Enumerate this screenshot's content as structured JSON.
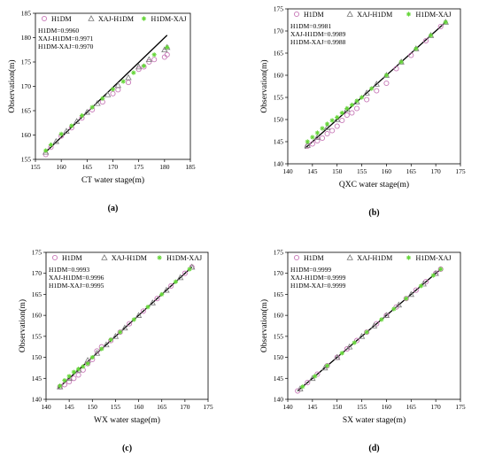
{
  "series_names": [
    "H1DM",
    "XAJ-H1DM",
    "H1DM-XAJ"
  ],
  "colors": {
    "h1dm": "#c87ab8",
    "xaj_h1dm": "#7a7a7a",
    "h1dm_xaj": "#66d63a",
    "fit_line": "#000000"
  },
  "chart_data": [
    {
      "type": "scatter",
      "panel_label": "(a)",
      "xlabel": "CT water stage(m)",
      "ylabel": "Observation(m)",
      "xlim": [
        155,
        185
      ],
      "ylim": [
        155,
        185
      ],
      "xticks": [
        155,
        160,
        165,
        170,
        175,
        180,
        185
      ],
      "yticks": [
        155,
        160,
        165,
        170,
        175,
        180,
        185
      ],
      "legend_position": "top",
      "annotations": [
        "H1DM=0.9960",
        "XAJ-H1DM=0.9971",
        "H1DM-XAJ=0.9970"
      ],
      "reference_line": {
        "x": [
          157,
          180.5
        ],
        "y": [
          156.5,
          180.5
        ]
      },
      "series": [
        {
          "name": "H1DM",
          "marker": "circle",
          "points": [
            [
              157,
              156
            ],
            [
              158,
              157.5
            ],
            [
              160,
              159.8
            ],
            [
              162,
              161.5
            ],
            [
              164,
              163.5
            ],
            [
              166,
              165.2
            ],
            [
              168,
              166.8
            ],
            [
              170,
              168.5
            ],
            [
              171,
              169.3
            ],
            [
              173,
              170.8
            ],
            [
              175,
              173.5
            ],
            [
              176,
              174
            ],
            [
              177,
              175
            ],
            [
              178,
              175.5
            ],
            [
              180,
              176
            ],
            [
              180.5,
              176.5
            ]
          ]
        },
        {
          "name": "XAJ-H1DM",
          "marker": "triangle",
          "points": [
            [
              157,
              156.5
            ],
            [
              159,
              158.7
            ],
            [
              161,
              160.8
            ],
            [
              163,
              162.8
            ],
            [
              165,
              164.7
            ],
            [
              167,
              166.5
            ],
            [
              169,
              168.3
            ],
            [
              171,
              170.2
            ],
            [
              173,
              171.8
            ],
            [
              175,
              174
            ],
            [
              177,
              175.5
            ],
            [
              180,
              177.5
            ],
            [
              180.5,
              178
            ]
          ]
        },
        {
          "name": "H1DM-XAJ",
          "marker": "star",
          "points": [
            [
              157,
              156.8
            ],
            [
              158,
              158
            ],
            [
              160,
              160.2
            ],
            [
              162,
              161.9
            ],
            [
              164,
              164
            ],
            [
              166,
              165.7
            ],
            [
              168,
              167.5
            ],
            [
              170,
              169.4
            ],
            [
              172,
              171
            ],
            [
              174,
              172.8
            ],
            [
              176,
              174.2
            ],
            [
              178,
              176.5
            ],
            [
              180.5,
              178
            ]
          ]
        }
      ]
    },
    {
      "type": "scatter",
      "panel_label": "(b)",
      "xlabel": "QXC water stage(m)",
      "ylabel": "Observation(m)",
      "xlim": [
        140,
        175
      ],
      "ylim": [
        140,
        175
      ],
      "xticks": [
        140,
        145,
        150,
        155,
        160,
        165,
        170,
        175
      ],
      "yticks": [
        140,
        145,
        150,
        155,
        160,
        165,
        170,
        175
      ],
      "legend_position": "top",
      "annotations": [
        "H1DM=0.9981",
        "XAJ-H1DM=0.9989",
        "H1DM-XAJ=0.9988"
      ],
      "reference_line": {
        "x": [
          143.5,
          172
        ],
        "y": [
          143.5,
          172
        ]
      },
      "series": [
        {
          "name": "H1DM",
          "marker": "circle",
          "points": [
            [
              144,
              144
            ],
            [
              145,
              144.5
            ],
            [
              146,
              145.2
            ],
            [
              147,
              145.8
            ],
            [
              148,
              146.8
            ],
            [
              149,
              147.5
            ],
            [
              150,
              148.5
            ],
            [
              151,
              149.8
            ],
            [
              152,
              151
            ],
            [
              153,
              151.5
            ],
            [
              154,
              152.5
            ],
            [
              156,
              154.5
            ],
            [
              158,
              156.5
            ],
            [
              160,
              158.2
            ],
            [
              162,
              161.5
            ],
            [
              165,
              164.5
            ],
            [
              168,
              167.8
            ],
            [
              171,
              171
            ]
          ]
        },
        {
          "name": "XAJ-H1DM",
          "marker": "triangle",
          "points": [
            [
              144,
              144.2
            ],
            [
              146,
              146
            ],
            [
              148,
              148.2
            ],
            [
              150,
              150
            ],
            [
              152,
              152.3
            ],
            [
              154,
              154
            ],
            [
              156,
              156
            ],
            [
              158,
              158
            ],
            [
              160,
              160
            ],
            [
              163,
              163
            ],
            [
              166,
              166
            ],
            [
              169,
              169
            ],
            [
              172,
              172
            ]
          ]
        },
        {
          "name": "H1DM-XAJ",
          "marker": "star",
          "points": [
            [
              144,
              145
            ],
            [
              145,
              146
            ],
            [
              146,
              147
            ],
            [
              147,
              148
            ],
            [
              148,
              149
            ],
            [
              149,
              149.8
            ],
            [
              150,
              150.5
            ],
            [
              151,
              151.5
            ],
            [
              152,
              152.5
            ],
            [
              153,
              153.3
            ],
            [
              154,
              154.2
            ],
            [
              155,
              155
            ],
            [
              157,
              157
            ],
            [
              160,
              160
            ],
            [
              163,
              163
            ],
            [
              166,
              166
            ],
            [
              169,
              169
            ],
            [
              172,
              172
            ]
          ]
        }
      ]
    },
    {
      "type": "scatter",
      "panel_label": "(c)",
      "xlabel": "WX water stage(m)",
      "ylabel": "Observation(m)",
      "xlim": [
        140,
        175
      ],
      "ylim": [
        140,
        175
      ],
      "xticks": [
        140,
        145,
        150,
        155,
        160,
        165,
        170,
        175
      ],
      "yticks": [
        140,
        145,
        150,
        155,
        160,
        165,
        170,
        175
      ],
      "legend_position": "top",
      "annotations": [
        "H1DM=0.9993",
        "XAJ-H1DM=0.9996",
        "H1DM-XAJ=0.9995"
      ],
      "reference_line": {
        "x": [
          142.5,
          171.5
        ],
        "y": [
          142.5,
          171.5
        ]
      },
      "series": [
        {
          "name": "H1DM",
          "marker": "circle",
          "points": [
            [
              143,
              143
            ],
            [
              144,
              143.5
            ],
            [
              145,
              144.2
            ],
            [
              146,
              145
            ],
            [
              147,
              145.8
            ],
            [
              148,
              147
            ],
            [
              149,
              148.5
            ],
            [
              150,
              149.5
            ],
            [
              151,
              151.5
            ],
            [
              152,
              152.5
            ],
            [
              154,
              154
            ],
            [
              156,
              156
            ],
            [
              158,
              158
            ],
            [
              161,
              161
            ],
            [
              164,
              164
            ],
            [
              167,
              167
            ],
            [
              170,
              170
            ],
            [
              171.5,
              171.5
            ]
          ]
        },
        {
          "name": "XAJ-H1DM",
          "marker": "triangle",
          "points": [
            [
              143,
              143
            ],
            [
              145,
              145
            ],
            [
              147,
              147
            ],
            [
              149,
              149.3
            ],
            [
              151,
              151
            ],
            [
              153,
              153
            ],
            [
              155,
              155
            ],
            [
              157,
              157
            ],
            [
              160,
              160
            ],
            [
              163,
              163
            ],
            [
              166,
              166
            ],
            [
              169,
              169
            ],
            [
              171.5,
              171.5
            ]
          ]
        },
        {
          "name": "H1DM-XAJ",
          "marker": "star",
          "points": [
            [
              143,
              143.2
            ],
            [
              144,
              144.5
            ],
            [
              145,
              145.5
            ],
            [
              146,
              146.5
            ],
            [
              147,
              147.2
            ],
            [
              148,
              147.8
            ],
            [
              149,
              148.5
            ],
            [
              150,
              150
            ],
            [
              152,
              152
            ],
            [
              154,
              154.2
            ],
            [
              156,
              156
            ],
            [
              159,
              159
            ],
            [
              162,
              162
            ],
            [
              165,
              165
            ],
            [
              168,
              168
            ],
            [
              171,
              171
            ]
          ]
        }
      ]
    },
    {
      "type": "scatter",
      "panel_label": "(d)",
      "xlabel": "SX water stage(m)",
      "ylabel": "Observation(m)",
      "xlim": [
        140,
        175
      ],
      "ylim": [
        140,
        175
      ],
      "xticks": [
        140,
        145,
        150,
        155,
        160,
        165,
        170,
        175
      ],
      "yticks": [
        140,
        145,
        150,
        155,
        160,
        165,
        170,
        175
      ],
      "legend_position": "top",
      "annotations": [
        "H1DM=0.9999",
        "XAJ-H1DM=0.9999",
        "H1DM-XAJ=0.9999"
      ],
      "reference_line": {
        "x": [
          142,
          171
        ],
        "y": [
          142,
          171
        ]
      },
      "series": [
        {
          "name": "H1DM",
          "marker": "circle",
          "points": [
            [
              142,
              142
            ],
            [
              144,
              144
            ],
            [
              146,
              146
            ],
            [
              148,
              148
            ],
            [
              150,
              150
            ],
            [
              152,
              152
            ],
            [
              154,
              154
            ],
            [
              156,
              156
            ],
            [
              158,
              158
            ],
            [
              160,
              160
            ],
            [
              162,
              162
            ],
            [
              164,
              164
            ],
            [
              166,
              166
            ],
            [
              168,
              168
            ],
            [
              170,
              170
            ],
            [
              171,
              171
            ]
          ]
        },
        {
          "name": "XAJ-H1DM",
          "marker": "triangle",
          "points": [
            [
              142.5,
              142.5
            ],
            [
              145,
              145
            ],
            [
              147.5,
              147.5
            ],
            [
              150,
              150
            ],
            [
              152.5,
              152.5
            ],
            [
              155,
              155
            ],
            [
              157.5,
              157.5
            ],
            [
              160,
              160
            ],
            [
              162.5,
              162.5
            ],
            [
              165,
              165
            ],
            [
              167.5,
              167.5
            ],
            [
              170,
              170
            ]
          ]
        },
        {
          "name": "H1DM-XAJ",
          "marker": "star",
          "points": [
            [
              143,
              143
            ],
            [
              145.5,
              145.5
            ],
            [
              148,
              148
            ],
            [
              151,
              151
            ],
            [
              153.5,
              153.5
            ],
            [
              156,
              156
            ],
            [
              159,
              159
            ],
            [
              161.5,
              161.5
            ],
            [
              164,
              164
            ],
            [
              167,
              167
            ],
            [
              169.5,
              169.5
            ],
            [
              171,
              171
            ]
          ]
        }
      ]
    }
  ]
}
